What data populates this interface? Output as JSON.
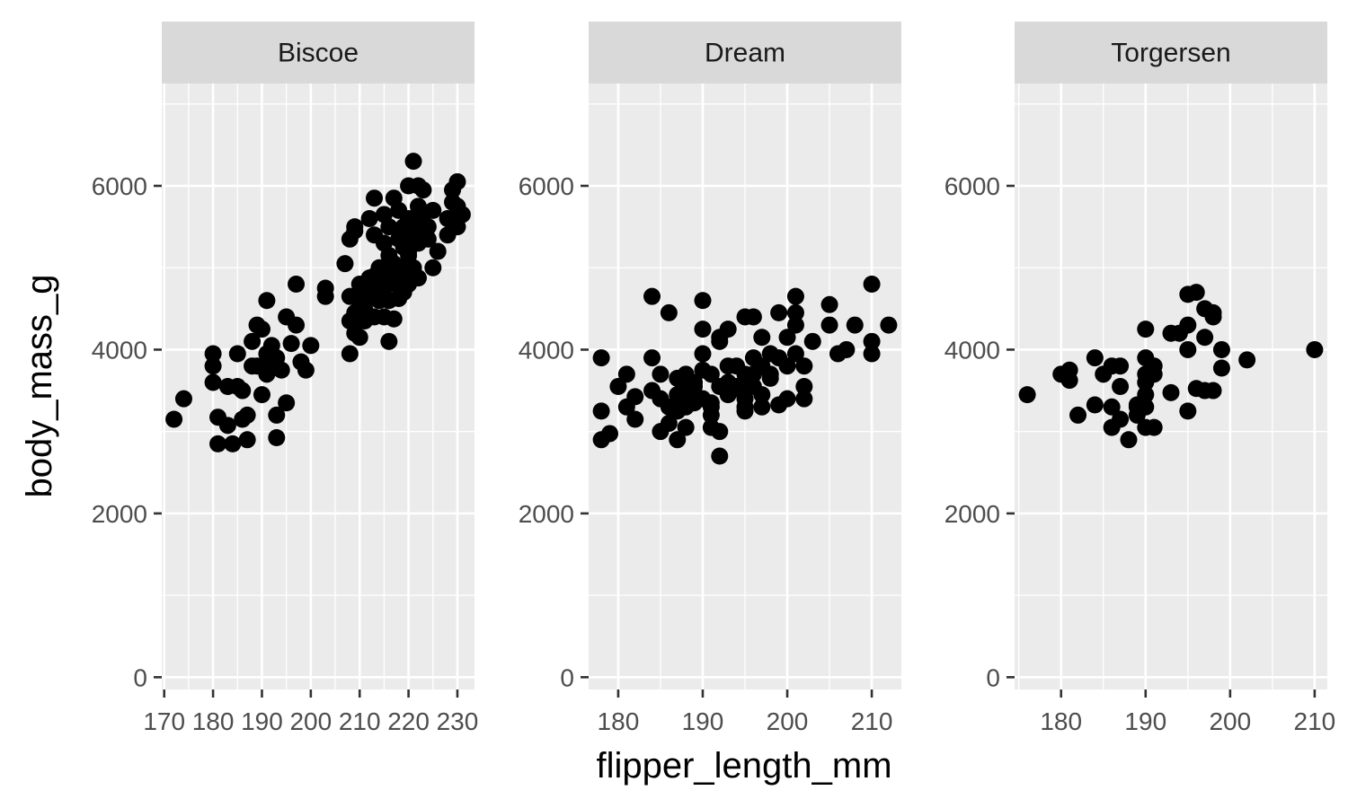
{
  "chart_data": {
    "type": "scatter",
    "facet_variable": "island",
    "xlabel": "flipper_length_mm",
    "ylabel": "body_mass_g",
    "ylim": [
      -150,
      7250
    ],
    "y_ticks": [
      0,
      2000,
      4000,
      6000
    ],
    "grid": true,
    "colors": {
      "panel": "#ebebeb",
      "strip": "#d9d9d9",
      "grid": "#ffffff",
      "point": "#000000",
      "tick_text": "#4d4d4d"
    },
    "panels": [
      {
        "label": "Biscoe",
        "xlim": [
          169.5,
          233.5
        ],
        "x_ticks": [
          170,
          180,
          190,
          200,
          210,
          220,
          230
        ],
        "points": [
          [
            172,
            3150
          ],
          [
            174,
            3400
          ],
          [
            180,
            3950
          ],
          [
            180,
            3800
          ],
          [
            180,
            3600
          ],
          [
            181,
            3175
          ],
          [
            181,
            2850
          ],
          [
            183,
            3075
          ],
          [
            183,
            3550
          ],
          [
            184,
            2850
          ],
          [
            185,
            3950
          ],
          [
            185,
            3550
          ],
          [
            186,
            3150
          ],
          [
            186,
            3500
          ],
          [
            187,
            3200
          ],
          [
            187,
            2900
          ],
          [
            188,
            3800
          ],
          [
            188,
            4100
          ],
          [
            189,
            4300
          ],
          [
            189,
            3800
          ],
          [
            190,
            4250
          ],
          [
            190,
            3450
          ],
          [
            191,
            3700
          ],
          [
            191,
            4600
          ],
          [
            191,
            3950
          ],
          [
            192,
            3800
          ],
          [
            192,
            4050
          ],
          [
            193,
            3200
          ],
          [
            193,
            2925
          ],
          [
            193,
            3900
          ],
          [
            194,
            3750
          ],
          [
            195,
            4400
          ],
          [
            195,
            3350
          ],
          [
            196,
            4075
          ],
          [
            197,
            4800
          ],
          [
            197,
            4300
          ],
          [
            198,
            3850
          ],
          [
            199,
            3750
          ],
          [
            200,
            4050
          ],
          [
            203,
            4650
          ],
          [
            203,
            4750
          ],
          [
            207,
            5050
          ],
          [
            208,
            4350
          ],
          [
            208,
            3950
          ],
          [
            208,
            5350
          ],
          [
            208,
            4650
          ],
          [
            209,
            5450
          ],
          [
            209,
            5500
          ],
          [
            209,
            4450
          ],
          [
            209,
            4200
          ],
          [
            210,
            4800
          ],
          [
            210,
            4600
          ],
          [
            210,
            4400
          ],
          [
            210,
            4150
          ],
          [
            210,
            4700
          ],
          [
            210,
            4450
          ],
          [
            211,
            4500
          ],
          [
            211,
            4750
          ],
          [
            211,
            4350
          ],
          [
            212,
            4875
          ],
          [
            212,
            4650
          ],
          [
            212,
            4750
          ],
          [
            212,
            5600
          ],
          [
            213,
            4400
          ],
          [
            213,
            5850
          ],
          [
            213,
            4900
          ],
          [
            213,
            5400
          ],
          [
            214,
            4850
          ],
          [
            214,
            4700
          ],
          [
            214,
            5000
          ],
          [
            214,
            4600
          ],
          [
            215,
            4400
          ],
          [
            215,
            5000
          ],
          [
            215,
            4750
          ],
          [
            215,
            5650
          ],
          [
            215,
            5300
          ],
          [
            215,
            4850
          ],
          [
            216,
            4100
          ],
          [
            216,
            5500
          ],
          [
            216,
            5150
          ],
          [
            216,
            4900
          ],
          [
            216,
            4600
          ],
          [
            217,
            5850
          ],
          [
            217,
            4800
          ],
          [
            217,
            4375
          ],
          [
            217,
            5050
          ],
          [
            218,
            5700
          ],
          [
            218,
            5000
          ],
          [
            218,
            4625
          ],
          [
            218,
            5350
          ],
          [
            219,
            5250
          ],
          [
            219,
            4950
          ],
          [
            219,
            5500
          ],
          [
            219,
            4700
          ],
          [
            220,
            5200
          ],
          [
            220,
            5400
          ],
          [
            220,
            6000
          ],
          [
            220,
            4800
          ],
          [
            220,
            5600
          ],
          [
            220,
            5150
          ],
          [
            221,
            6300
          ],
          [
            221,
            5350
          ],
          [
            221,
            5000
          ],
          [
            221,
            5550
          ],
          [
            222,
            6000
          ],
          [
            222,
            5750
          ],
          [
            222,
            5300
          ],
          [
            222,
            4875
          ],
          [
            223,
            5950
          ],
          [
            223,
            5650
          ],
          [
            223,
            5500
          ],
          [
            224,
            5350
          ],
          [
            224,
            5500
          ],
          [
            225,
            5700
          ],
          [
            225,
            5000
          ],
          [
            226,
            5200
          ],
          [
            228,
            5400
          ],
          [
            228,
            5600
          ],
          [
            229,
            5950
          ],
          [
            229,
            5800
          ],
          [
            230,
            5500
          ],
          [
            230,
            6050
          ],
          [
            230,
            5750
          ],
          [
            231,
            5650
          ],
          [
            230,
            5600
          ]
        ]
      },
      {
        "label": "Dream",
        "xlim": [
          176.5,
          213.5
        ],
        "x_ticks": [
          180,
          190,
          200,
          210
        ],
        "points": [
          [
            178,
            3900
          ],
          [
            178,
            3250
          ],
          [
            178,
            2900
          ],
          [
            179,
            2975
          ],
          [
            180,
            3550
          ],
          [
            181,
            3300
          ],
          [
            181,
            3700
          ],
          [
            182,
            3150
          ],
          [
            182,
            3425
          ],
          [
            184,
            4650
          ],
          [
            184,
            3500
          ],
          [
            184,
            3900
          ],
          [
            185,
            3400
          ],
          [
            185,
            3700
          ],
          [
            185,
            3000
          ],
          [
            186,
            4450
          ],
          [
            186,
            3100
          ],
          [
            186,
            3300
          ],
          [
            187,
            3650
          ],
          [
            187,
            3450
          ],
          [
            187,
            3250
          ],
          [
            187,
            2900
          ],
          [
            188,
            3500
          ],
          [
            188,
            3700
          ],
          [
            188,
            3050
          ],
          [
            188,
            3300
          ],
          [
            189,
            3350
          ],
          [
            189,
            3600
          ],
          [
            189,
            3550
          ],
          [
            190,
            3950
          ],
          [
            190,
            4250
          ],
          [
            190,
            4600
          ],
          [
            190,
            3400
          ],
          [
            190,
            3750
          ],
          [
            191,
            3350
          ],
          [
            191,
            3300
          ],
          [
            191,
            3200
          ],
          [
            191,
            3050
          ],
          [
            191,
            3700
          ],
          [
            192,
            4150
          ],
          [
            192,
            3000
          ],
          [
            192,
            2700
          ],
          [
            192,
            4100
          ],
          [
            192,
            3550
          ],
          [
            193,
            3450
          ],
          [
            193,
            4250
          ],
          [
            193,
            3800
          ],
          [
            193,
            3600
          ],
          [
            194,
            3525
          ],
          [
            194,
            3800
          ],
          [
            194,
            3550
          ],
          [
            195,
            3250
          ],
          [
            195,
            3700
          ],
          [
            195,
            3400
          ],
          [
            195,
            4400
          ],
          [
            195,
            3600
          ],
          [
            195,
            3300
          ],
          [
            196,
            4400
          ],
          [
            196,
            3900
          ],
          [
            196,
            3550
          ],
          [
            196,
            3700
          ],
          [
            197,
            4150
          ],
          [
            197,
            3300
          ],
          [
            197,
            3450
          ],
          [
            197,
            3800
          ],
          [
            198,
            3950
          ],
          [
            198,
            3700
          ],
          [
            198,
            3650
          ],
          [
            199,
            4450
          ],
          [
            199,
            3325
          ],
          [
            199,
            3900
          ],
          [
            200,
            4150
          ],
          [
            200,
            3400
          ],
          [
            200,
            3800
          ],
          [
            201,
            4650
          ],
          [
            201,
            4300
          ],
          [
            201,
            3950
          ],
          [
            201,
            4450
          ],
          [
            202,
            3800
          ],
          [
            202,
            3400
          ],
          [
            202,
            3550
          ],
          [
            203,
            4100
          ],
          [
            205,
            4550
          ],
          [
            205,
            4300
          ],
          [
            206,
            3950
          ],
          [
            207,
            4000
          ],
          [
            208,
            4300
          ],
          [
            210,
            4800
          ],
          [
            210,
            4100
          ],
          [
            210,
            3950
          ],
          [
            212,
            4300
          ]
        ]
      },
      {
        "label": "Torgersen",
        "xlim": [
          174.5,
          211.5
        ],
        "x_ticks": [
          180,
          190,
          200,
          210
        ],
        "points": [
          [
            176,
            3450
          ],
          [
            180,
            3700
          ],
          [
            181,
            3750
          ],
          [
            181,
            3625
          ],
          [
            182,
            3200
          ],
          [
            184,
            3900
          ],
          [
            184,
            3325
          ],
          [
            185,
            3700
          ],
          [
            186,
            3800
          ],
          [
            186,
            3300
          ],
          [
            186,
            3050
          ],
          [
            187,
            3800
          ],
          [
            187,
            3150
          ],
          [
            187,
            3550
          ],
          [
            188,
            2900
          ],
          [
            189,
            3325
          ],
          [
            189,
            3300
          ],
          [
            189,
            3200
          ],
          [
            190,
            4250
          ],
          [
            190,
            3900
          ],
          [
            190,
            3600
          ],
          [
            190,
            3700
          ],
          [
            190,
            3050
          ],
          [
            190,
            3300
          ],
          [
            190,
            3450
          ],
          [
            191,
            3800
          ],
          [
            191,
            3700
          ],
          [
            191,
            3050
          ],
          [
            193,
            4200
          ],
          [
            193,
            3475
          ],
          [
            194,
            4200
          ],
          [
            195,
            4300
          ],
          [
            195,
            4000
          ],
          [
            195,
            3250
          ],
          [
            195,
            4675
          ],
          [
            196,
            4700
          ],
          [
            196,
            3525
          ],
          [
            197,
            4500
          ],
          [
            197,
            4150
          ],
          [
            197,
            3500
          ],
          [
            198,
            4400
          ],
          [
            198,
            4450
          ],
          [
            198,
            3500
          ],
          [
            199,
            4000
          ],
          [
            199,
            3775
          ],
          [
            202,
            3875
          ],
          [
            210,
            4000
          ]
        ]
      }
    ]
  }
}
